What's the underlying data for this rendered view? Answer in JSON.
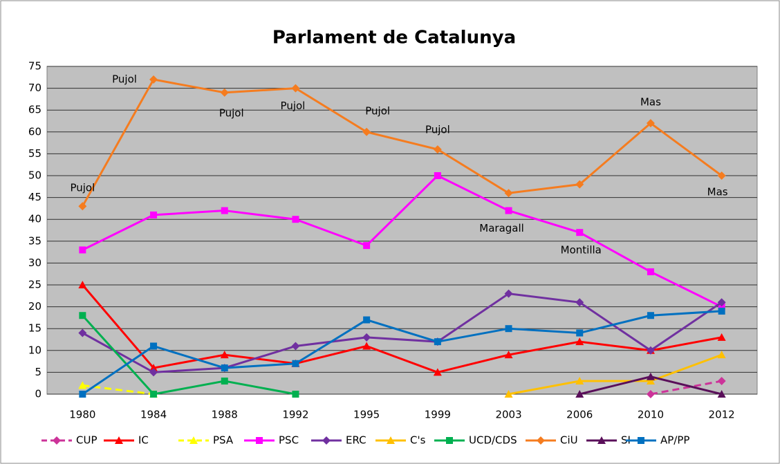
{
  "chart_data": {
    "type": "line",
    "title": "Parlament de Catalunya",
    "categories": [
      "1980",
      "1984",
      "1988",
      "1992",
      "1995",
      "1999",
      "2003",
      "2006",
      "2010",
      "2012"
    ],
    "series": [
      {
        "name": "CUP",
        "color": "#cc3399",
        "marker": "diamond",
        "dash": true,
        "values": [
          null,
          null,
          null,
          null,
          null,
          null,
          null,
          null,
          0,
          3
        ]
      },
      {
        "name": "IC",
        "color": "#ff0000",
        "marker": "triangle",
        "dash": false,
        "values": [
          25,
          6,
          9,
          7,
          11,
          5,
          9,
          12,
          10,
          13
        ]
      },
      {
        "name": "PSA",
        "color": "#ffff00",
        "marker": "triangle",
        "dash": true,
        "values": [
          2,
          0,
          null,
          null,
          null,
          null,
          null,
          null,
          null,
          null
        ]
      },
      {
        "name": "PSC",
        "color": "#ff00ff",
        "marker": "square",
        "dash": false,
        "values": [
          33,
          41,
          42,
          40,
          34,
          50,
          42,
          37,
          28,
          20
        ]
      },
      {
        "name": "ERC",
        "color": "#7030a0",
        "marker": "diamond",
        "dash": false,
        "values": [
          14,
          5,
          6,
          11,
          13,
          12,
          23,
          21,
          10,
          21
        ]
      },
      {
        "name": "C's",
        "color": "#ffc000",
        "marker": "triangle",
        "dash": false,
        "values": [
          null,
          null,
          null,
          null,
          null,
          null,
          0,
          3,
          3,
          9
        ]
      },
      {
        "name": "UCD/CDS",
        "color": "#00b050",
        "marker": "square",
        "dash": false,
        "values": [
          18,
          0,
          3,
          0,
          null,
          null,
          null,
          null,
          null,
          null
        ]
      },
      {
        "name": "CiU",
        "color": "#f57c1f",
        "marker": "diamond",
        "dash": false,
        "values": [
          43,
          72,
          69,
          70,
          60,
          56,
          46,
          48,
          62,
          50
        ]
      },
      {
        "name": "SI",
        "color": "#5a0f5a",
        "marker": "triangle",
        "dash": false,
        "values": [
          null,
          null,
          null,
          null,
          null,
          null,
          null,
          0,
          4,
          0
        ]
      },
      {
        "name": "AP/PP",
        "color": "#0070c0",
        "marker": "square",
        "dash": false,
        "values": [
          0,
          11,
          6,
          7,
          17,
          12,
          15,
          14,
          18,
          19
        ]
      }
    ],
    "annotations": [
      {
        "text": "Pujol",
        "x": "1980",
        "series": "CiU"
      },
      {
        "text": "Pujol",
        "x": "1984",
        "series": "CiU"
      },
      {
        "text": "Pujol",
        "x": "1988",
        "series": "CiU"
      },
      {
        "text": "Pujol",
        "x": "1992",
        "series": "CiU"
      },
      {
        "text": "Pujol",
        "x": "1995",
        "series": "CiU"
      },
      {
        "text": "Pujol",
        "x": "1999",
        "series": "CiU"
      },
      {
        "text": "Maragall",
        "x": "2003",
        "series": "PSC"
      },
      {
        "text": "Montilla",
        "x": "2006",
        "series": "PSC"
      },
      {
        "text": "Mas",
        "x": "2010",
        "series": "CiU"
      },
      {
        "text": "Mas",
        "x": "2012",
        "series": "CiU"
      }
    ],
    "ylim": [
      0,
      75
    ],
    "yticks": [
      0,
      5,
      10,
      15,
      20,
      25,
      30,
      35,
      40,
      45,
      50,
      55,
      60,
      65,
      70,
      75
    ],
    "grid": true,
    "legend": "bottom"
  }
}
